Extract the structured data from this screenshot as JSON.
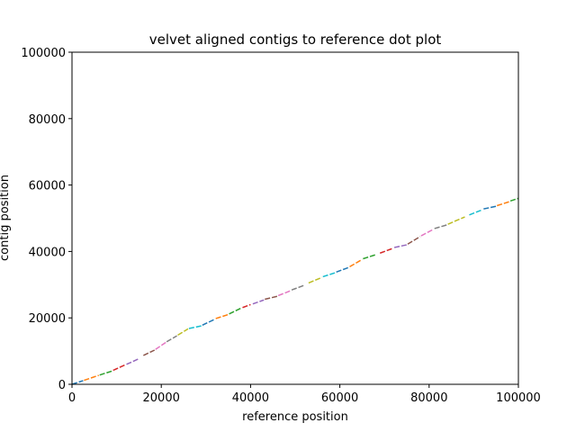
{
  "chart_data": {
    "type": "line",
    "title": "velvet aligned contigs to reference dot plot",
    "xlabel": "reference position",
    "ylabel": "contig position",
    "xlim": [
      0,
      100000
    ],
    "ylim": [
      0,
      100000
    ],
    "xticks": [
      0,
      20000,
      40000,
      60000,
      80000,
      100000
    ],
    "yticks": [
      0,
      20000,
      40000,
      60000,
      80000,
      100000
    ],
    "tick_labels_x": [
      "0",
      "20000",
      "40000",
      "60000",
      "80000",
      "100000"
    ],
    "tick_labels_y": [
      "0",
      "20000",
      "40000",
      "60000",
      "80000",
      "100000"
    ],
    "grid": false,
    "legend": "none",
    "series_colors": [
      "#1f77b4",
      "#ff7f0e",
      "#2ca02c",
      "#d62728",
      "#9467bd",
      "#8c564b",
      "#e377c2",
      "#7f7f7f",
      "#bcbd22",
      "#17becf"
    ],
    "series": [
      {
        "x": [
          0,
          2500
        ],
        "y": [
          0,
          1100
        ]
      },
      {
        "x": [
          2700,
          6000
        ],
        "y": [
          1200,
          2700
        ]
      },
      {
        "x": [
          6200,
          9000
        ],
        "y": [
          2800,
          4000
        ]
      },
      {
        "x": [
          9200,
          12000
        ],
        "y": [
          4200,
          5900
        ]
      },
      {
        "x": [
          12200,
          15000
        ],
        "y": [
          6000,
          7700
        ]
      },
      {
        "x": [
          16000,
          18500
        ],
        "y": [
          8700,
          10300
        ]
      },
      {
        "x": [
          18700,
          21000
        ],
        "y": [
          10500,
          12600
        ]
      },
      {
        "x": [
          21200,
          23500
        ],
        "y": [
          12800,
          14600
        ]
      },
      {
        "x": [
          23700,
          26000
        ],
        "y": [
          14800,
          16700
        ]
      },
      {
        "x": [
          26200,
          29000
        ],
        "y": [
          16800,
          17600
        ]
      },
      {
        "x": [
          29200,
          32000
        ],
        "y": [
          17800,
          19600
        ]
      },
      {
        "x": [
          32200,
          35000
        ],
        "y": [
          19800,
          21000
        ]
      },
      {
        "x": [
          35200,
          38000
        ],
        "y": [
          21200,
          23000
        ]
      },
      {
        "x": [
          38200,
          40000
        ],
        "y": [
          23100,
          24000
        ]
      },
      {
        "x": [
          40500,
          43000
        ],
        "y": [
          24200,
          25400
        ]
      },
      {
        "x": [
          43200,
          46000
        ],
        "y": [
          25600,
          26500
        ]
      },
      {
        "x": [
          46200,
          49000
        ],
        "y": [
          26700,
          28200
        ]
      },
      {
        "x": [
          49200,
          52000
        ],
        "y": [
          28400,
          29800
        ]
      },
      {
        "x": [
          53000,
          56000
        ],
        "y": [
          30500,
          32200
        ]
      },
      {
        "x": [
          56200,
          59000
        ],
        "y": [
          32400,
          33600
        ]
      },
      {
        "x": [
          59200,
          62000
        ],
        "y": [
          33800,
          35200
        ]
      },
      {
        "x": [
          62200,
          65000
        ],
        "y": [
          35400,
          37600
        ]
      },
      {
        "x": [
          65200,
          68000
        ],
        "y": [
          37800,
          39000
        ]
      },
      {
        "x": [
          69000,
          72000
        ],
        "y": [
          39500,
          41000
        ]
      },
      {
        "x": [
          72200,
          75000
        ],
        "y": [
          41200,
          42000
        ]
      },
      {
        "x": [
          75200,
          78000
        ],
        "y": [
          42200,
          44500
        ]
      },
      {
        "x": [
          78200,
          81000
        ],
        "y": [
          44700,
          46700
        ]
      },
      {
        "x": [
          81200,
          84000
        ],
        "y": [
          46900,
          48000
        ]
      },
      {
        "x": [
          84200,
          88000
        ],
        "y": [
          48200,
          50400
        ]
      },
      {
        "x": [
          89000,
          92000
        ],
        "y": [
          51000,
          52600
        ]
      },
      {
        "x": [
          92200,
          95000
        ],
        "y": [
          52800,
          53600
        ]
      },
      {
        "x": [
          95200,
          98000
        ],
        "y": [
          53800,
          55000
        ]
      },
      {
        "x": [
          98200,
          100000
        ],
        "y": [
          55200,
          56000
        ]
      }
    ]
  }
}
